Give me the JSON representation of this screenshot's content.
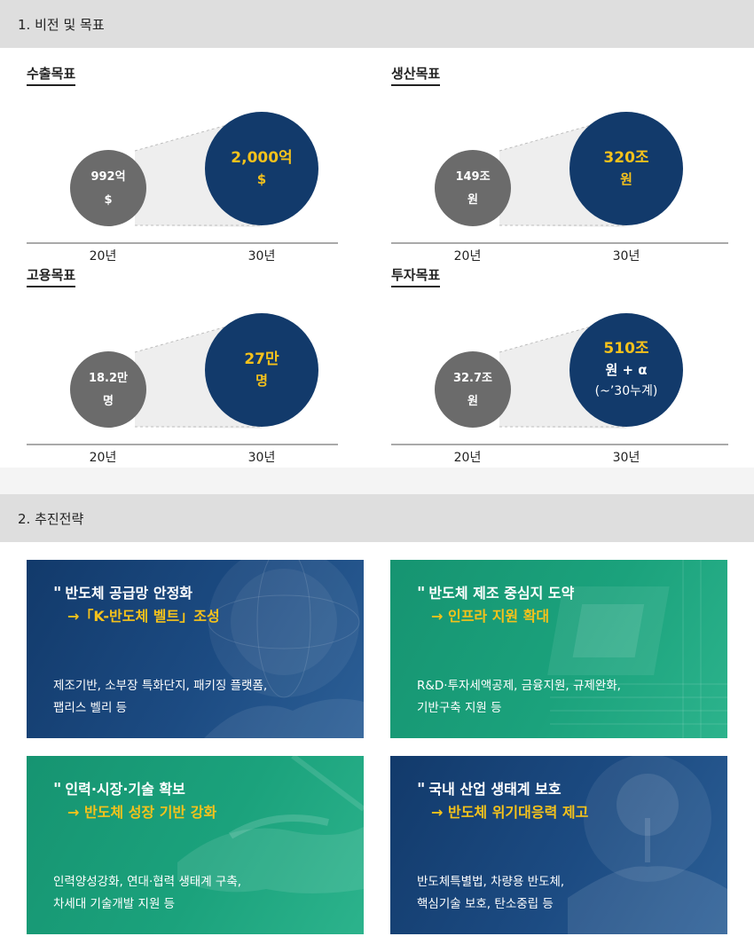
{
  "section1": {
    "title": "1. 비전 및 목표"
  },
  "section2": {
    "title": "2. 추진전략"
  },
  "goals": [
    {
      "title": "수출목표",
      "from_value": "992억",
      "from_unit": "$",
      "to_value": "2,000억",
      "to_unit": "$",
      "from_year": "20년",
      "to_year": "30년"
    },
    {
      "title": "생산목표",
      "from_value": "149조",
      "from_unit": "원",
      "to_value": "320조",
      "to_unit": "원",
      "from_year": "20년",
      "to_year": "30년"
    },
    {
      "title": "고용목표",
      "from_value": "18.2만",
      "from_unit": "명",
      "to_value": "27만",
      "to_unit": "명",
      "from_year": "20년",
      "to_year": "30년"
    },
    {
      "title": "투자목표",
      "from_value": "32.7조",
      "from_unit": "원",
      "to_value": "510조",
      "to_unit": "원 + α",
      "to_note": "(~’30누계)",
      "from_year": "20년",
      "to_year": "30년"
    }
  ],
  "strategies": [
    {
      "quote": "\"",
      "title": "반도체 공급망 안정화",
      "subtitle": "→「K-반도체 벨트」조성",
      "desc_line1": "제조기반, 소부장 특화단지, 패키징 플랫폼,",
      "desc_line2": "팹리스 벨리 등"
    },
    {
      "quote": "\"",
      "title": "반도체 제조 중심지 도약",
      "subtitle": "→ 인프라 지원 확대",
      "desc_line1": "R&D·투자세액공제, 금융지원, 규제완화,",
      "desc_line2": "기반구축 지원 등"
    },
    {
      "quote": "\"",
      "title": "인력·시장·기술 확보",
      "subtitle": "→ 반도체 성장 기반 강화",
      "desc_line1": "인력양성강화, 연대·협력 생태계 구축,",
      "desc_line2": "차세대 기술개발 지원 등"
    },
    {
      "quote": "\"",
      "title": "국내 산업 생태계 보호",
      "subtitle": "→ 반도체 위기대응력 제고",
      "desc_line1": "반도체특별법, 차량용 반도체,",
      "desc_line2": "핵심기술 보호, 탄소중립 등"
    }
  ],
  "colors": {
    "navy": "#123a6b",
    "green": "#169471",
    "gray_circle": "#6b6b6b",
    "gold": "#f5c21b"
  }
}
